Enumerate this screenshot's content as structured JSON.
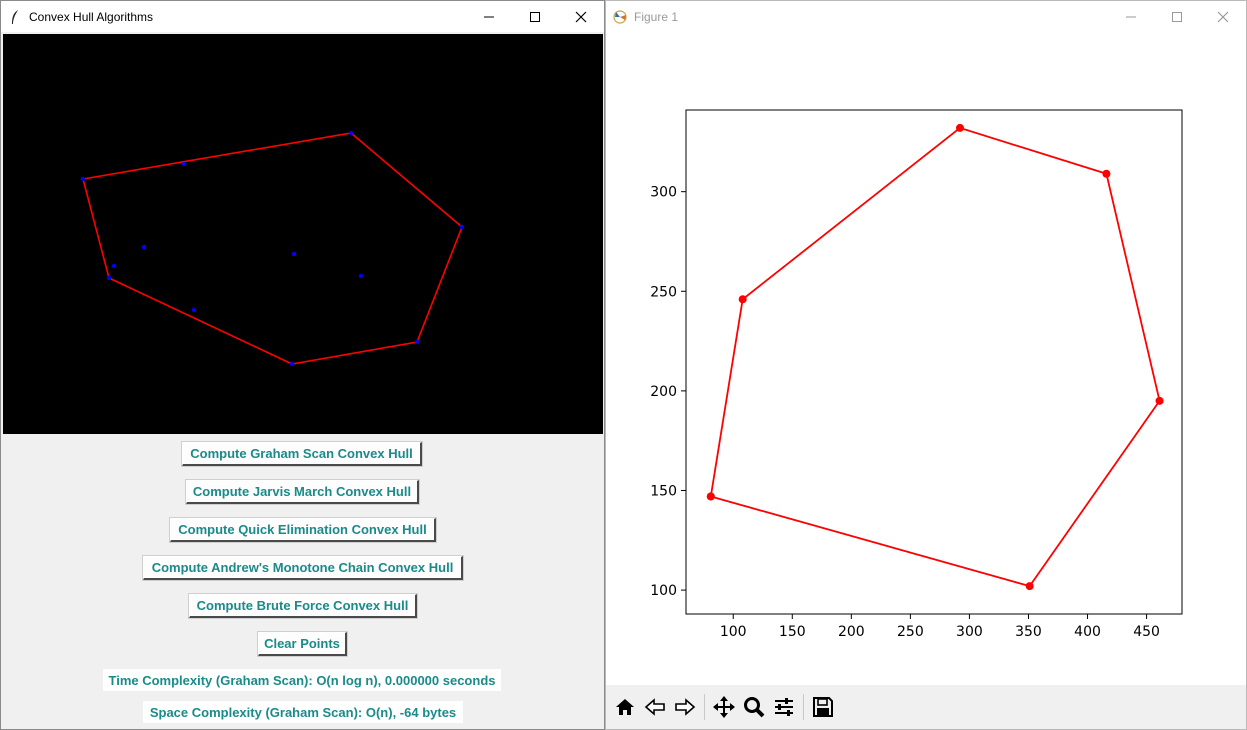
{
  "left_window": {
    "title": "Convex Hull Algorithms",
    "buttons": [
      "Compute Graham Scan Convex Hull",
      "Compute Jarvis March Convex Hull",
      "Compute Quick Elimination Convex Hull",
      "Compute Andrew's Monotone Chain Convex Hull",
      "Compute Brute Force Convex Hull",
      "Clear Points"
    ],
    "time_complexity": "Time Complexity (Graham Scan): O(n log n), 0.000000 seconds",
    "space_complexity": "Space Complexity (Graham Scan): O(n), -64 bytes"
  },
  "right_window": {
    "title": "Figure 1",
    "toolbar": [
      "home-icon",
      "back-icon",
      "forward-icon",
      "pan-icon",
      "zoom-icon",
      "configure-icon",
      "save-icon"
    ]
  },
  "colors": {
    "hull": "#ff0000",
    "points": "#0000ff",
    "accent_text": "#1a8a8a",
    "canvas_bg": "#000000"
  },
  "chart_data": {
    "type": "line",
    "x": [
      81,
      108,
      292,
      416,
      461,
      351,
      81
    ],
    "y": [
      147,
      246,
      332,
      309,
      195,
      102,
      147
    ],
    "xlim": [
      60,
      480
    ],
    "ylim": [
      88,
      341
    ],
    "xticks": [
      100,
      150,
      200,
      250,
      300,
      350,
      400,
      450
    ],
    "yticks": [
      100,
      150,
      200,
      250,
      300
    ],
    "color": "#ff0000",
    "marker": "o"
  }
}
